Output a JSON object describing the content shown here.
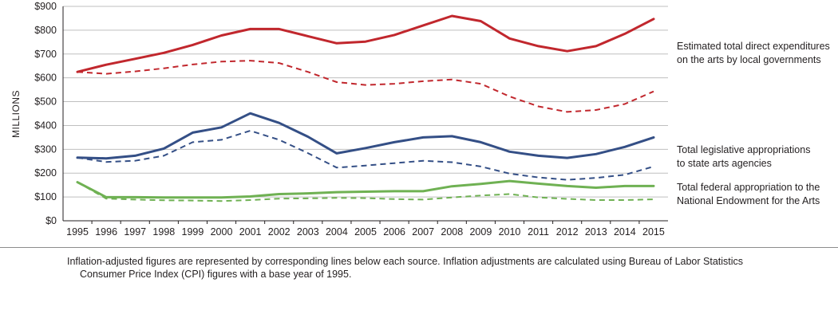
{
  "chart_data": {
    "type": "line",
    "ylabel": "MILLIONS",
    "ylim": [
      0,
      900
    ],
    "yticks": [
      "$0",
      "$100",
      "$200",
      "$300",
      "$400",
      "$500",
      "$600",
      "$700",
      "$800",
      "$900"
    ],
    "x": [
      "1995",
      "1996",
      "1997",
      "1998",
      "1999",
      "2000",
      "2001",
      "2002",
      "2003",
      "2004",
      "2005",
      "2006",
      "2007",
      "2008",
      "2009",
      "2010",
      "2011",
      "2012",
      "2013",
      "2014",
      "2015"
    ],
    "grid": true,
    "series": [
      {
        "key": "local",
        "color": "#c1272d",
        "dashed": false,
        "values": [
          625,
          655,
          680,
          705,
          738,
          778,
          805,
          805,
          775,
          745,
          752,
          780,
          820,
          860,
          838,
          765,
          733,
          712,
          733,
          785,
          847
        ]
      },
      {
        "key": "local_adj",
        "color": "#c1272d",
        "dashed": true,
        "values": [
          625,
          617,
          627,
          640,
          656,
          668,
          672,
          662,
          625,
          582,
          570,
          575,
          586,
          593,
          575,
          522,
          480,
          457,
          465,
          490,
          543
        ]
      },
      {
        "key": "state",
        "color": "#344f86",
        "dashed": false,
        "values": [
          265,
          262,
          273,
          303,
          370,
          392,
          451,
          411,
          353,
          283,
          305,
          330,
          350,
          355,
          330,
          290,
          273,
          264,
          280,
          310,
          350
        ]
      },
      {
        "key": "state_adj",
        "color": "#344f86",
        "dashed": true,
        "values": [
          265,
          247,
          252,
          273,
          330,
          340,
          378,
          340,
          284,
          223,
          232,
          242,
          252,
          246,
          228,
          198,
          182,
          172,
          180,
          193,
          228
        ]
      },
      {
        "key": "nea",
        "color": "#6fb153",
        "dashed": false,
        "values": [
          162,
          99,
          99,
          98,
          98,
          98,
          102,
          112,
          115,
          120,
          122,
          124,
          124,
          145,
          155,
          167,
          156,
          146,
          139,
          146,
          146
        ]
      },
      {
        "key": "nea_adj",
        "color": "#6fb153",
        "dashed": true,
        "values": [
          162,
          93,
          89,
          86,
          85,
          83,
          87,
          93,
          94,
          96,
          95,
          91,
          89,
          98,
          106,
          112,
          98,
          92,
          87,
          87,
          90
        ]
      }
    ],
    "annotations": [
      {
        "key": "local",
        "lines": [
          "Estimated total direct expenditures",
          "on the arts by local governments"
        ]
      },
      {
        "key": "state",
        "lines": [
          "Total legislative appropriations",
          "to state arts agencies"
        ]
      },
      {
        "key": "nea",
        "lines": [
          "Total federal appropriation to the",
          "National Endowment for the Arts"
        ]
      }
    ]
  },
  "note": {
    "line1": "Inflation-adjusted figures are represented by corresponding lines below each source. Inflation adjustments are calculated using Bureau of Labor Statistics",
    "line2": "Consumer Price Index (CPI) figures with a base year of 1995."
  }
}
